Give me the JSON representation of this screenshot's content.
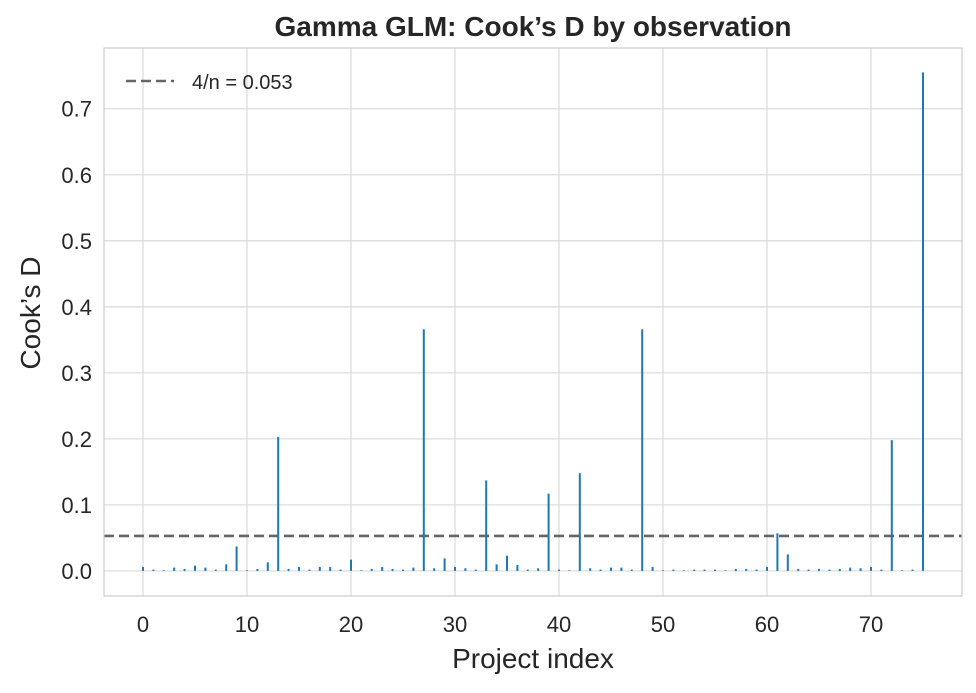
{
  "chart_data": {
    "type": "bar",
    "title": "Gamma GLM: Cook’s D by observation",
    "xlabel": "Project index",
    "ylabel": "Cook’s D",
    "xlim": [
      -3.75,
      78.75
    ],
    "ylim": [
      -0.038,
      0.792
    ],
    "xticks": [
      0,
      10,
      20,
      30,
      40,
      50,
      60,
      70
    ],
    "yticks": [
      0.0,
      0.1,
      0.2,
      0.3,
      0.4,
      0.5,
      0.6,
      0.7
    ],
    "ytick_labels": [
      "0.0",
      "0.1",
      "0.2",
      "0.3",
      "0.4",
      "0.5",
      "0.6",
      "0.7"
    ],
    "grid": true,
    "legend_position": "top-left",
    "series": [
      {
        "x": [
          0,
          1,
          2,
          3,
          4,
          5,
          6,
          7,
          8,
          9,
          10,
          11,
          12,
          13,
          14,
          15,
          16,
          17,
          18,
          19,
          20,
          21,
          22,
          23,
          24,
          25,
          26,
          27,
          28,
          29,
          30,
          31,
          32,
          33,
          34,
          35,
          36,
          37,
          38,
          39,
          40,
          41,
          42,
          43,
          44,
          45,
          46,
          47,
          48,
          49,
          50,
          51,
          52,
          53,
          54,
          55,
          56,
          57,
          58,
          59,
          60,
          61,
          62,
          63,
          64,
          65,
          66,
          67,
          68,
          69,
          70,
          71,
          72,
          73,
          74,
          75
        ],
        "values": [
          0.006,
          0.002,
          0.001,
          0.005,
          0.003,
          0.008,
          0.005,
          0.002,
          0.01,
          0.037,
          0.001,
          0.003,
          0.013,
          0.203,
          0.003,
          0.006,
          0.002,
          0.006,
          0.006,
          0.002,
          0.017,
          0.001,
          0.003,
          0.006,
          0.003,
          0.002,
          0.005,
          0.366,
          0.004,
          0.019,
          0.006,
          0.004,
          0.002,
          0.137,
          0.01,
          0.023,
          0.009,
          0.002,
          0.004,
          0.117,
          0.002,
          0.001,
          0.148,
          0.004,
          0.002,
          0.005,
          0.005,
          0.002,
          0.366,
          0.006,
          0.001,
          0.002,
          0.001,
          0.002,
          0.002,
          0.002,
          0.001,
          0.003,
          0.003,
          0.002,
          0.006,
          0.057,
          0.025,
          0.003,
          0.002,
          0.003,
          0.002,
          0.003,
          0.005,
          0.004,
          0.006,
          0.002,
          0.198,
          0.001,
          0.002,
          0.755
        ],
        "color": "#1f77b4"
      }
    ],
    "reference_lines": [
      {
        "label": "4/n = 0.053",
        "y": 0.053,
        "style": "dashed",
        "color": "#666666"
      }
    ]
  }
}
